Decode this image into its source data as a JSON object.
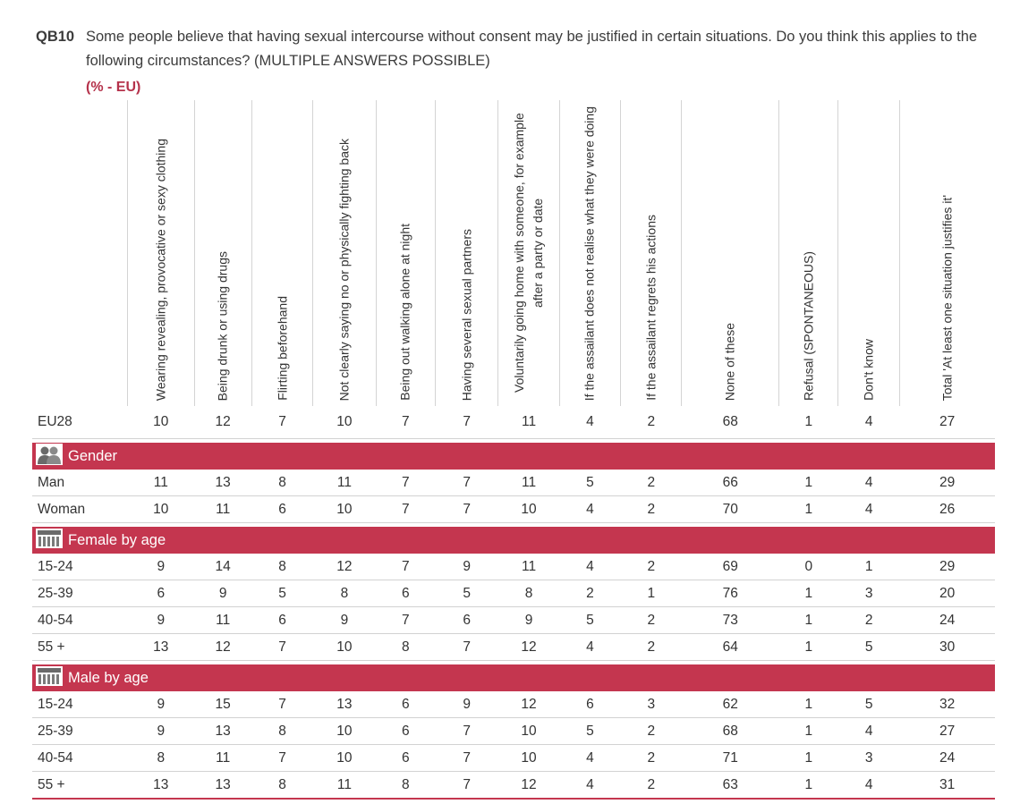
{
  "question": {
    "code": "QB10",
    "text": "Some people believe that having sexual intercourse without consent may be justified in certain situations. Do you think this applies to the following circumstances? (MULTIPLE ANSWERS POSSIBLE)",
    "unit": "(% - EU)"
  },
  "columns": [
    "Wearing revealing, provocative or sexy clothing",
    "Being drunk or using drugs",
    "Flirting beforehand",
    "Not clearly saying no or physically fighting back",
    "Being out walking alone at night",
    "Having several sexual partners",
    "Voluntarily going home with someone, for example after a party or date",
    "If the assailant does not realise what they were doing",
    "If the assailant regrets his actions",
    "None of these",
    "Refusal (SPONTANEOUS)",
    "Don't know",
    "Total 'At least one situation justifies it'"
  ],
  "total_row": {
    "label": "EU28",
    "values": [
      "10",
      "12",
      "7",
      "10",
      "7",
      "7",
      "11",
      "4",
      "2",
      "68",
      "1",
      "4",
      "27"
    ]
  },
  "sections": [
    {
      "title": "Gender",
      "icon": "people-icon",
      "rows": [
        {
          "label": "Man",
          "values": [
            "11",
            "13",
            "8",
            "11",
            "7",
            "7",
            "11",
            "5",
            "2",
            "66",
            "1",
            "4",
            "29"
          ]
        },
        {
          "label": "Woman",
          "values": [
            "10",
            "11",
            "6",
            "10",
            "7",
            "7",
            "10",
            "4",
            "2",
            "70",
            "1",
            "4",
            "26"
          ]
        }
      ]
    },
    {
      "title": "Female by age",
      "icon": "calendar-icon",
      "rows": [
        {
          "label": "15-24",
          "values": [
            "9",
            "14",
            "8",
            "12",
            "7",
            "9",
            "11",
            "4",
            "2",
            "69",
            "0",
            "1",
            "29"
          ]
        },
        {
          "label": "25-39",
          "values": [
            "6",
            "9",
            "5",
            "8",
            "6",
            "5",
            "8",
            "2",
            "1",
            "76",
            "1",
            "3",
            "20"
          ]
        },
        {
          "label": "40-54",
          "values": [
            "9",
            "11",
            "6",
            "9",
            "7",
            "6",
            "9",
            "5",
            "2",
            "73",
            "1",
            "2",
            "24"
          ]
        },
        {
          "label": "55 +",
          "values": [
            "13",
            "12",
            "7",
            "10",
            "8",
            "7",
            "12",
            "4",
            "2",
            "64",
            "1",
            "5",
            "30"
          ]
        }
      ]
    },
    {
      "title": "Male by age",
      "icon": "calendar-icon",
      "rows": [
        {
          "label": "15-24",
          "values": [
            "9",
            "15",
            "7",
            "13",
            "6",
            "9",
            "12",
            "6",
            "3",
            "62",
            "1",
            "5",
            "32"
          ]
        },
        {
          "label": "25-39",
          "values": [
            "9",
            "13",
            "8",
            "10",
            "6",
            "7",
            "10",
            "5",
            "2",
            "68",
            "1",
            "4",
            "27"
          ]
        },
        {
          "label": "40-54",
          "values": [
            "8",
            "11",
            "7",
            "10",
            "6",
            "7",
            "10",
            "4",
            "2",
            "71",
            "1",
            "3",
            "24"
          ]
        },
        {
          "label": "55 +",
          "values": [
            "13",
            "13",
            "8",
            "11",
            "8",
            "7",
            "12",
            "4",
            "2",
            "63",
            "1",
            "4",
            "31"
          ]
        }
      ]
    }
  ],
  "colors": {
    "accent": "#c4364f",
    "unit": "#b5324b"
  }
}
